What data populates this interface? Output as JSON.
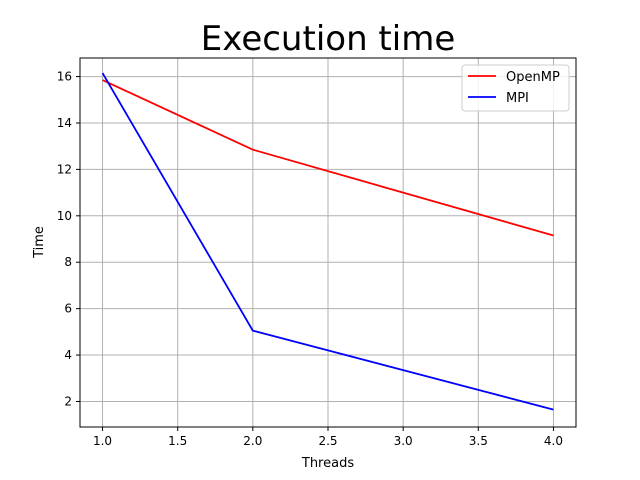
{
  "chart_data": {
    "type": "line",
    "title": "Execution time",
    "xlabel": "Threads",
    "ylabel": "Time",
    "x": [
      1.0,
      2.0,
      4.0
    ],
    "xlim": [
      0.85,
      4.15
    ],
    "ylim": [
      0.9,
      16.8
    ],
    "xticks": [
      1.0,
      1.5,
      2.0,
      2.5,
      3.0,
      3.5,
      4.0
    ],
    "xtick_labels": [
      "1.0",
      "1.5",
      "2.0",
      "2.5",
      "3.0",
      "3.5",
      "4.0"
    ],
    "yticks": [
      2,
      4,
      6,
      8,
      10,
      12,
      14,
      16
    ],
    "ytick_labels": [
      "2",
      "4",
      "6",
      "8",
      "10",
      "12",
      "14",
      "16"
    ],
    "grid": true,
    "legend_position": "top-right",
    "series": [
      {
        "name": "OpenMP",
        "color": "#ff0000",
        "values": [
          15.85,
          12.85,
          9.15
        ]
      },
      {
        "name": "MPI",
        "color": "#0000ff",
        "values": [
          16.15,
          5.05,
          1.65
        ]
      }
    ]
  }
}
